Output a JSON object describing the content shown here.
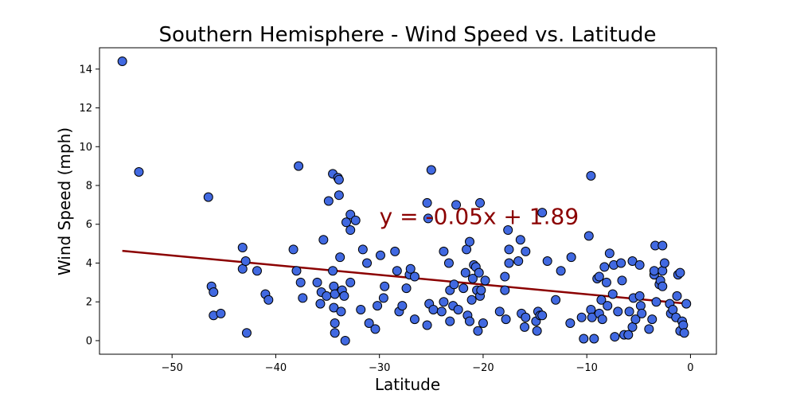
{
  "chart_data": {
    "type": "scatter",
    "title": "Southern Hemisphere - Wind Speed vs. Latitude",
    "xlabel": "Latitude",
    "ylabel": "Wind Speed (mph)",
    "xlim": [
      -57,
      2.5
    ],
    "ylim": [
      -0.7,
      15.1
    ],
    "xticks": [
      -50,
      -40,
      -30,
      -20,
      -10,
      0
    ],
    "yticks": [
      0,
      2,
      4,
      6,
      8,
      10,
      12,
      14
    ],
    "xtick_labels": [
      "−50",
      "−40",
      "−30",
      "−20",
      "−10",
      "0"
    ],
    "ytick_labels": [
      "0",
      "2",
      "4",
      "6",
      "8",
      "10",
      "12",
      "14"
    ],
    "grid": false,
    "marker_color": "#4169e1",
    "marker_edge": "#000000",
    "regression": {
      "slope": -0.05,
      "intercept": 1.89,
      "x_range": [
        -54.8,
        -0.5
      ],
      "color": "#8b0000",
      "annotation": "y = -0.05x + 1.89",
      "annotation_color": "#8b0000",
      "annotation_x": -30,
      "annotation_y": 6.0
    },
    "points": [
      [
        -54.8,
        14.4
      ],
      [
        -53.2,
        8.7
      ],
      [
        -46.5,
        7.4
      ],
      [
        -46.2,
        2.8
      ],
      [
        -46.0,
        2.5
      ],
      [
        -46.0,
        1.3
      ],
      [
        -45.3,
        1.4
      ],
      [
        -43.2,
        4.8
      ],
      [
        -43.2,
        3.7
      ],
      [
        -42.9,
        4.1
      ],
      [
        -42.8,
        0.4
      ],
      [
        -41.8,
        3.6
      ],
      [
        -41.0,
        2.4
      ],
      [
        -40.7,
        2.1
      ],
      [
        -38.3,
        4.7
      ],
      [
        -38.0,
        3.6
      ],
      [
        -37.8,
        9.0
      ],
      [
        -37.6,
        3.0
      ],
      [
        -37.4,
        2.2
      ],
      [
        -36.0,
        3.0
      ],
      [
        -35.7,
        1.9
      ],
      [
        -35.6,
        2.5
      ],
      [
        -35.4,
        5.2
      ],
      [
        -35.1,
        2.3
      ],
      [
        -34.9,
        7.2
      ],
      [
        -34.5,
        8.6
      ],
      [
        -34.5,
        3.6
      ],
      [
        -34.4,
        2.8
      ],
      [
        -34.4,
        1.7
      ],
      [
        -34.3,
        2.4
      ],
      [
        -34.3,
        0.9
      ],
      [
        -34.3,
        0.4
      ],
      [
        -34.0,
        8.4
      ],
      [
        -33.9,
        8.3
      ],
      [
        -33.9,
        7.5
      ],
      [
        -33.8,
        4.3
      ],
      [
        -33.7,
        1.5
      ],
      [
        -33.6,
        2.6
      ],
      [
        -33.4,
        2.3
      ],
      [
        -33.2,
        6.1
      ],
      [
        -33.3,
        0.0
      ],
      [
        -32.8,
        6.5
      ],
      [
        -32.8,
        5.7
      ],
      [
        -32.8,
        3.0
      ],
      [
        -32.3,
        6.2
      ],
      [
        -31.8,
        1.6
      ],
      [
        -31.6,
        4.7
      ],
      [
        -31.2,
        4.0
      ],
      [
        -31.0,
        0.9
      ],
      [
        -30.4,
        0.6
      ],
      [
        -30.2,
        1.8
      ],
      [
        -29.9,
        4.4
      ],
      [
        -29.6,
        2.2
      ],
      [
        -29.5,
        2.8
      ],
      [
        -28.5,
        4.6
      ],
      [
        -28.3,
        3.6
      ],
      [
        -28.1,
        1.5
      ],
      [
        -27.8,
        1.8
      ],
      [
        -27.4,
        2.7
      ],
      [
        -27.1,
        3.4
      ],
      [
        -27.0,
        3.7
      ],
      [
        -26.6,
        3.3
      ],
      [
        -26.6,
        1.1
      ],
      [
        -25.4,
        7.1
      ],
      [
        -25.3,
        6.3
      ],
      [
        -25.4,
        0.8
      ],
      [
        -25.2,
        1.9
      ],
      [
        -25.0,
        8.8
      ],
      [
        -24.8,
        1.6
      ],
      [
        -24.0,
        1.5
      ],
      [
        -23.8,
        4.6
      ],
      [
        -23.8,
        2.0
      ],
      [
        -23.3,
        4.0
      ],
      [
        -23.2,
        2.6
      ],
      [
        -23.2,
        1.0
      ],
      [
        -22.9,
        1.8
      ],
      [
        -22.8,
        2.9
      ],
      [
        -22.6,
        7.0
      ],
      [
        -22.4,
        1.6
      ],
      [
        -21.9,
        2.7
      ],
      [
        -21.7,
        3.5
      ],
      [
        -21.6,
        4.7
      ],
      [
        -21.5,
        1.3
      ],
      [
        -21.3,
        5.1
      ],
      [
        -21.3,
        1.0
      ],
      [
        -21.1,
        2.1
      ],
      [
        -21.0,
        3.2
      ],
      [
        -20.9,
        3.9
      ],
      [
        -20.7,
        3.8
      ],
      [
        -20.6,
        2.6
      ],
      [
        -20.5,
        0.5
      ],
      [
        -20.4,
        3.5
      ],
      [
        -20.3,
        2.3
      ],
      [
        -20.3,
        7.1
      ],
      [
        -20.2,
        2.6
      ],
      [
        -20.0,
        0.9
      ],
      [
        -19.8,
        3.1
      ],
      [
        -18.4,
        1.5
      ],
      [
        -17.9,
        3.3
      ],
      [
        -17.9,
        2.6
      ],
      [
        -17.8,
        1.1
      ],
      [
        -17.6,
        5.7
      ],
      [
        -17.5,
        4.7
      ],
      [
        -17.5,
        4.0
      ],
      [
        -16.6,
        4.1
      ],
      [
        -16.4,
        5.2
      ],
      [
        -16.3,
        1.4
      ],
      [
        -15.9,
        4.6
      ],
      [
        -15.9,
        1.2
      ],
      [
        -16.0,
        0.7
      ],
      [
        -14.9,
        1.0
      ],
      [
        -14.8,
        0.5
      ],
      [
        -14.7,
        1.5
      ],
      [
        -14.5,
        1.3
      ],
      [
        -14.3,
        1.3
      ],
      [
        -14.3,
        6.6
      ],
      [
        -13.8,
        4.1
      ],
      [
        -13.0,
        2.1
      ],
      [
        -12.5,
        3.6
      ],
      [
        -11.6,
        0.9
      ],
      [
        -11.5,
        4.3
      ],
      [
        -10.5,
        1.2
      ],
      [
        -10.3,
        0.1
      ],
      [
        -9.8,
        5.4
      ],
      [
        -9.6,
        8.5
      ],
      [
        -9.6,
        1.6
      ],
      [
        -9.5,
        1.2
      ],
      [
        -9.3,
        0.1
      ],
      [
        -9.0,
        3.2
      ],
      [
        -8.8,
        3.3
      ],
      [
        -8.8,
        1.4
      ],
      [
        -8.6,
        2.1
      ],
      [
        -8.5,
        1.1
      ],
      [
        -8.3,
        3.8
      ],
      [
        -8.1,
        3.0
      ],
      [
        -8.0,
        1.8
      ],
      [
        -7.8,
        4.5
      ],
      [
        -7.5,
        2.4
      ],
      [
        -7.4,
        3.9
      ],
      [
        -7.3,
        0.2
      ],
      [
        -7.0,
        1.5
      ],
      [
        -6.7,
        4.0
      ],
      [
        -6.6,
        3.1
      ],
      [
        -6.4,
        0.3
      ],
      [
        -6.0,
        0.3
      ],
      [
        -5.9,
        1.5
      ],
      [
        -5.6,
        4.1
      ],
      [
        -5.6,
        0.7
      ],
      [
        -5.5,
        2.2
      ],
      [
        -5.3,
        1.1
      ],
      [
        -4.9,
        2.3
      ],
      [
        -4.9,
        3.9
      ],
      [
        -4.8,
        1.8
      ],
      [
        -4.7,
        1.4
      ],
      [
        -4.0,
        0.6
      ],
      [
        -3.7,
        1.1
      ],
      [
        -3.5,
        3.4
      ],
      [
        -3.5,
        3.6
      ],
      [
        -3.4,
        4.9
      ],
      [
        -3.3,
        2.0
      ],
      [
        -3.0,
        2.9
      ],
      [
        -2.9,
        3.1
      ],
      [
        -2.7,
        4.9
      ],
      [
        -2.7,
        3.6
      ],
      [
        -2.7,
        2.8
      ],
      [
        -2.5,
        4.0
      ],
      [
        -2.0,
        1.9
      ],
      [
        -1.9,
        1.4
      ],
      [
        -1.7,
        1.6
      ],
      [
        -1.4,
        1.2
      ],
      [
        -1.3,
        2.3
      ],
      [
        -1.2,
        3.4
      ],
      [
        -1.0,
        3.5
      ],
      [
        -1.0,
        0.5
      ],
      [
        -0.8,
        1.0
      ],
      [
        -0.7,
        0.8
      ],
      [
        -0.6,
        0.4
      ],
      [
        -0.4,
        1.9
      ]
    ]
  }
}
